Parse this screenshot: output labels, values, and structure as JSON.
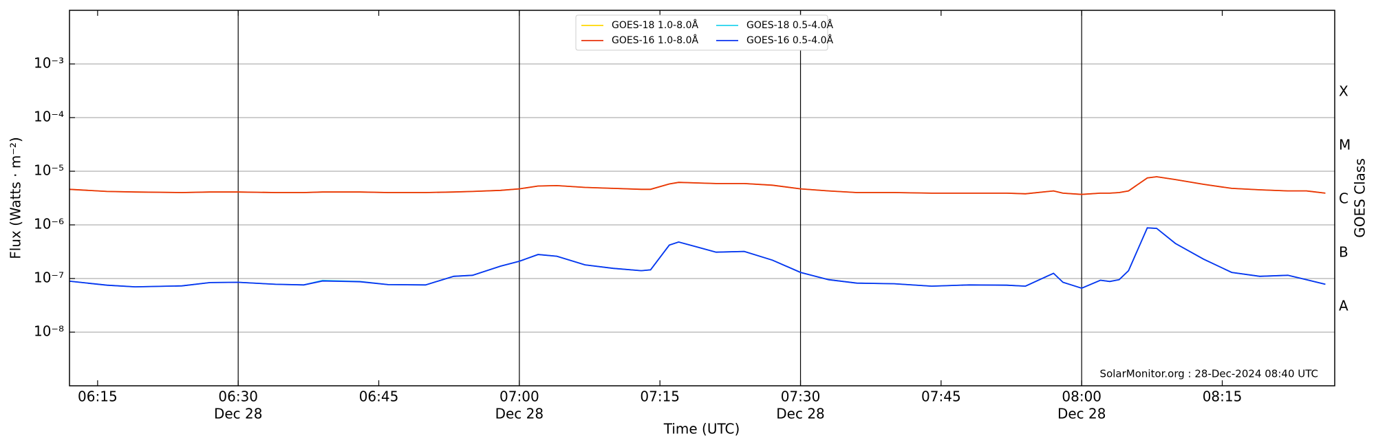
{
  "chart_data": {
    "type": "line",
    "y_label": "Flux (Watts · m⁻²)",
    "y2_label": "GOES Class",
    "x_label": "Time (UTC)",
    "annotation": "SolarMonitor.org : 28-Dec-2024 08:40 UTC",
    "log_y": true,
    "grid": "y",
    "legend": "top",
    "xlim": [
      "06:12",
      "08:27"
    ],
    "xticks": [
      "06:15",
      {
        "value": "06:30",
        "label": [
          "06:30",
          "Dec 28"
        ]
      },
      "06:45",
      {
        "value": "07:00",
        "label": [
          "07:00",
          "Dec 28"
        ]
      },
      "07:15",
      {
        "value": "07:30",
        "label": [
          "07:30",
          "Dec 28"
        ]
      },
      "07:45",
      {
        "value": "08:00",
        "label": [
          "08:00",
          "Dec 28"
        ]
      },
      "08:15"
    ],
    "ylim": [
      1e-09,
      0.01
    ],
    "yticks": [
      {
        "value": 1e-08,
        "label": "10⁻⁸"
      },
      {
        "value": 1e-07,
        "label": "10⁻⁷"
      },
      {
        "value": 1e-06,
        "label": "10⁻⁶"
      },
      {
        "value": 1e-05,
        "label": "10⁻⁵"
      },
      {
        "value": 0.0001,
        "label": "10⁻⁴"
      },
      {
        "value": 0.001,
        "label": "10⁻³"
      }
    ],
    "y2lim": [
      1e-09,
      0.01
    ],
    "y2ticks": [
      {
        "value": 3e-08,
        "label": "A"
      },
      {
        "value": 3e-07,
        "label": "B"
      },
      {
        "value": 3e-06,
        "label": "C"
      },
      {
        "value": 3e-05,
        "label": "M"
      },
      {
        "value": 0.0003,
        "label": "X"
      }
    ],
    "x": [
      "06:12",
      "06:16",
      "06:19",
      "06:24",
      "06:27",
      "06:30",
      "06:34",
      "06:37",
      "06:39",
      "06:43",
      "06:46",
      "06:50",
      "06:53",
      "06:55",
      "06:58",
      "07:00",
      "07:02",
      "07:04",
      "07:07",
      "07:10",
      "07:13",
      "07:14",
      "07:16",
      "07:17",
      "07:21",
      "07:24",
      "07:27",
      "07:30",
      "07:33",
      "07:36",
      "07:40",
      "07:44",
      "07:48",
      "07:52",
      "07:54",
      "07:57",
      "07:58",
      "08:00",
      "08:02",
      "08:03",
      "08:04",
      "08:05",
      "08:07",
      "08:08",
      "08:10",
      "08:13",
      "08:16",
      "08:19",
      "08:22",
      "08:24",
      "08:26"
    ],
    "series": [
      {
        "name": "GOES-18 1.0-8.0Å",
        "color": "#ffd700",
        "values": [
          4.6e-06,
          4.2e-06,
          4.1e-06,
          4e-06,
          4.1e-06,
          4.1e-06,
          4e-06,
          4e-06,
          4.1e-06,
          4.1e-06,
          4e-06,
          4e-06,
          4.1e-06,
          4.2e-06,
          4.4e-06,
          4.7e-06,
          5.3e-06,
          5.4e-06,
          5e-06,
          4.8e-06,
          4.6e-06,
          4.6e-06,
          5.8e-06,
          6.2e-06,
          5.9e-06,
          5.9e-06,
          5.5e-06,
          4.7e-06,
          4.3e-06,
          4e-06,
          4e-06,
          3.9e-06,
          3.9e-06,
          3.9e-06,
          3.8e-06,
          4.3e-06,
          3.9e-06,
          3.7e-06,
          3.9e-06,
          3.9e-06,
          4e-06,
          4.3e-06,
          7.5e-06,
          7.9e-06,
          7e-06,
          5.7e-06,
          4.8e-06,
          4.5e-06,
          4.3e-06,
          4.3e-06,
          3.9e-06
        ]
      },
      {
        "name": "GOES-16 1.0-8.0Å",
        "color": "#e8320c",
        "values": [
          4.6e-06,
          4.2e-06,
          4.1e-06,
          4e-06,
          4.1e-06,
          4.1e-06,
          4e-06,
          4e-06,
          4.1e-06,
          4.1e-06,
          4e-06,
          4e-06,
          4.1e-06,
          4.2e-06,
          4.4e-06,
          4.7e-06,
          5.3e-06,
          5.4e-06,
          5e-06,
          4.8e-06,
          4.6e-06,
          4.6e-06,
          5.8e-06,
          6.2e-06,
          5.9e-06,
          5.9e-06,
          5.5e-06,
          4.7e-06,
          4.3e-06,
          4e-06,
          4e-06,
          3.9e-06,
          3.9e-06,
          3.9e-06,
          3.8e-06,
          4.3e-06,
          3.9e-06,
          3.7e-06,
          3.9e-06,
          3.9e-06,
          4e-06,
          4.3e-06,
          7.5e-06,
          7.9e-06,
          7e-06,
          5.7e-06,
          4.8e-06,
          4.5e-06,
          4.3e-06,
          4.3e-06,
          3.9e-06
        ]
      },
      {
        "name": "GOES-18 0.5-4.0Å",
        "color": "#22d3ee",
        "values": [
          8.9e-08,
          7.5e-08,
          7e-08,
          7.3e-08,
          8.4e-08,
          8.5e-08,
          7.8e-08,
          7.6e-08,
          9.2e-08,
          8.8e-08,
          7.7e-08,
          7.6e-08,
          1.1e-07,
          1.15e-07,
          1.7e-07,
          2.1e-07,
          2.8e-07,
          2.6e-07,
          1.8e-07,
          1.55e-07,
          1.4e-07,
          1.45e-07,
          4.2e-07,
          4.8e-07,
          3.1e-07,
          3.2e-07,
          2.2e-07,
          1.3e-07,
          9.5e-08,
          8.2e-08,
          8e-08,
          7.2e-08,
          7.6e-08,
          7.5e-08,
          7.2e-08,
          1.25e-07,
          8.5e-08,
          6.6e-08,
          9.3e-08,
          8.8e-08,
          9.5e-08,
          1.4e-07,
          8.8e-07,
          8.6e-07,
          4.5e-07,
          2.3e-07,
          1.3e-07,
          1.1e-07,
          1.15e-07,
          9.5e-08,
          7.8e-08
        ]
      },
      {
        "name": "GOES-16 0.5-4.0Å",
        "color": "#0a32f0",
        "values": [
          8.9e-08,
          7.5e-08,
          7e-08,
          7.3e-08,
          8.4e-08,
          8.5e-08,
          7.8e-08,
          7.6e-08,
          9e-08,
          8.7e-08,
          7.7e-08,
          7.6e-08,
          1.1e-07,
          1.15e-07,
          1.7e-07,
          2.1e-07,
          2.8e-07,
          2.6e-07,
          1.8e-07,
          1.55e-07,
          1.4e-07,
          1.45e-07,
          4.2e-07,
          4.8e-07,
          3.1e-07,
          3.2e-07,
          2.2e-07,
          1.3e-07,
          9.5e-08,
          8.2e-08,
          8e-08,
          7.2e-08,
          7.6e-08,
          7.5e-08,
          7.2e-08,
          1.25e-07,
          8.5e-08,
          6.6e-08,
          9.3e-08,
          8.8e-08,
          9.5e-08,
          1.4e-07,
          8.8e-07,
          8.6e-07,
          4.5e-07,
          2.3e-07,
          1.3e-07,
          1.1e-07,
          1.15e-07,
          9.5e-08,
          7.8e-08
        ]
      }
    ]
  }
}
